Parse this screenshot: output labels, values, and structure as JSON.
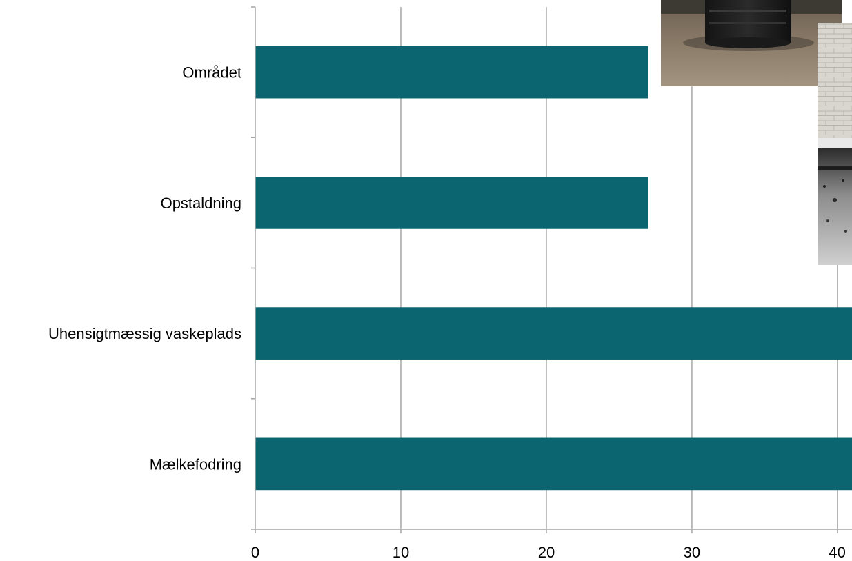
{
  "chart_data": {
    "type": "bar",
    "orientation": "horizontal",
    "categories": [
      "Området",
      "Opstaldning",
      "Uhensigtmæssig vaskeplads",
      "Mælkefodring"
    ],
    "values": [
      27,
      27,
      41,
      41
    ],
    "xlim": [
      0,
      41
    ],
    "xticks": [
      0,
      10,
      20,
      30,
      40
    ],
    "title": "",
    "xlabel": "",
    "ylabel": "",
    "grid": "vertical",
    "bar_color": "#0a6570",
    "gridline_color": "#a6a6a6"
  },
  "photos": [
    {
      "name": "tank-photo"
    },
    {
      "name": "stable-wall-photo"
    }
  ]
}
